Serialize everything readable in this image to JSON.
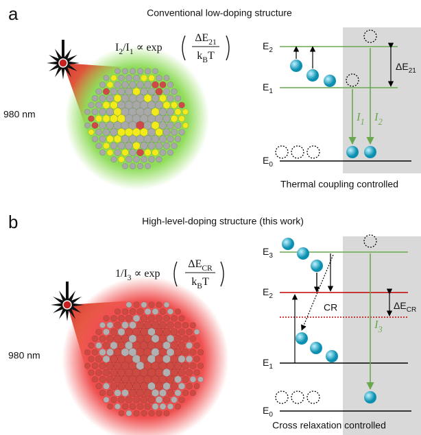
{
  "panels": [
    {
      "letter": "a",
      "title": "Conventional low-doping structure",
      "formula": {
        "lhs": [
          {
            "t": "I"
          },
          {
            "sub": "2"
          },
          {
            "t": "/I"
          },
          {
            "sub": "1"
          },
          {
            "t": " ∝  exp"
          }
        ],
        "num": [
          {
            "t": "ΔE"
          },
          {
            "sub": "21"
          }
        ],
        "den": [
          {
            "t": "k"
          },
          {
            "sub": "B"
          },
          {
            "t": "T"
          }
        ]
      },
      "wavelength": "980 nm",
      "levels": [
        {
          "t": "E",
          "sub": "2"
        },
        {
          "t": "E",
          "sub": "1"
        },
        {
          "t": "E",
          "sub": "0"
        }
      ],
      "gap": {
        "t": "ΔE",
        "sub": "21"
      },
      "emissions": [
        {
          "t": "I",
          "sub": "1"
        },
        {
          "t": "I",
          "sub": "2"
        }
      ],
      "caption": "Thermal coupling controlled"
    },
    {
      "letter": "b",
      "title": "High-level-doping structure (this work)",
      "formula": {
        "lhs": [
          {
            "t": "1/I"
          },
          {
            "sub": "3"
          },
          {
            "t": " ∝ exp"
          }
        ],
        "num": [
          {
            "t": "ΔE"
          },
          {
            "sub": "CR"
          }
        ],
        "den": [
          {
            "t": "k"
          },
          {
            "sub": "B"
          },
          {
            "t": "T"
          }
        ]
      },
      "wavelength": "980 nm",
      "levels": [
        {
          "t": "E",
          "sub": "3"
        },
        {
          "t": "E",
          "sub": "2"
        },
        {
          "t": "E",
          "sub": "1"
        },
        {
          "t": "E",
          "sub": "0"
        }
      ],
      "gap": {
        "t": "ΔE",
        "sub": "CR"
      },
      "cr": "CR",
      "emissions": [
        {
          "t": "I",
          "sub": "3"
        }
      ],
      "caption": "Cross relaxation controlled"
    }
  ]
}
